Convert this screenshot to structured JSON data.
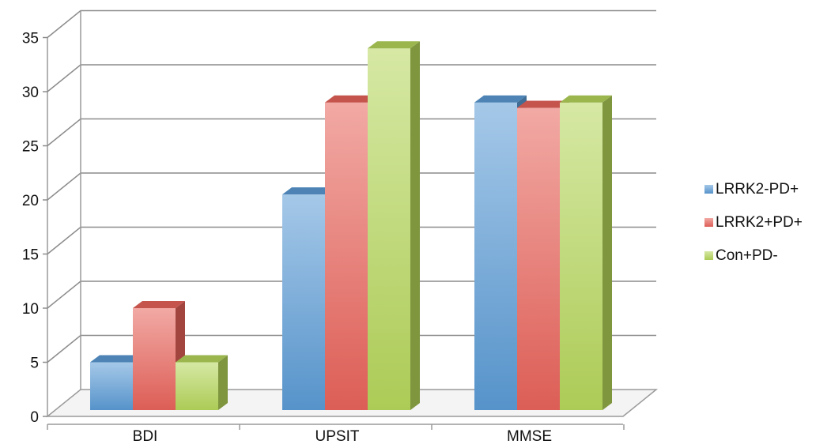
{
  "chart_data": {
    "type": "bar",
    "categories": [
      "BDI",
      "UPSIT",
      "MMSE"
    ],
    "series": [
      {
        "name": "LRRK2-PD+",
        "values": [
          5,
          20.5,
          29
        ],
        "color": "#5b9bd5"
      },
      {
        "name": "LRRK2+PD+",
        "values": [
          10,
          29,
          28.5
        ],
        "color": "#e8635a"
      },
      {
        "name": "Con+PD-",
        "values": [
          5,
          34,
          29
        ],
        "color": "#b5d65a"
      }
    ],
    "y_ticks": [
      "0",
      "5",
      "10",
      "15",
      "20",
      "25",
      "30",
      "35"
    ],
    "ylim": [
      0,
      35
    ],
    "grid": true,
    "legend_position": "right",
    "style": "3d-clustered-column"
  }
}
